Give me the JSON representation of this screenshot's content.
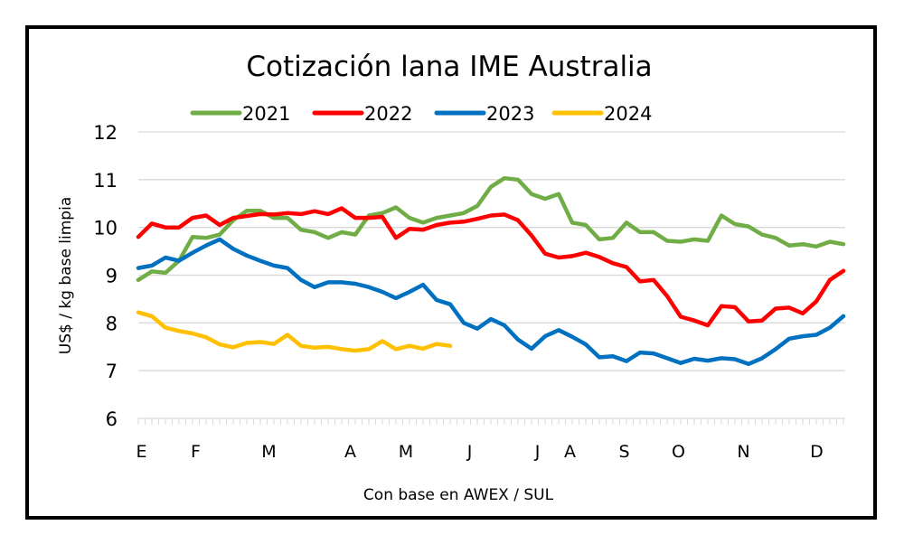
{
  "chart_data": {
    "type": "line",
    "title": "Cotización lana IME Australia",
    "ylabel": "US$ / kg base limpia",
    "xlabel": "Con base en AWEX / SUL",
    "ylim": [
      6,
      12
    ],
    "yticks": [
      6,
      7,
      8,
      9,
      10,
      11,
      12
    ],
    "xlim": [
      0,
      52
    ],
    "grid": "horizontal",
    "legend": "top",
    "x_unit": "week of year",
    "month_labels": [
      {
        "label": "E",
        "week": 0.1
      },
      {
        "label": "F",
        "week": 4.1
      },
      {
        "label": "M",
        "week": 9.5
      },
      {
        "label": "A",
        "week": 15.5
      },
      {
        "label": "M",
        "week": 19.6
      },
      {
        "label": "J",
        "week": 24.3
      },
      {
        "label": "J",
        "week": 29.3
      },
      {
        "label": "A",
        "week": 31.7
      },
      {
        "label": "S",
        "week": 35.7
      },
      {
        "label": "O",
        "week": 39.7
      },
      {
        "label": "N",
        "week": 44.5
      },
      {
        "label": "D",
        "week": 49.9
      }
    ],
    "series": [
      {
        "name": "2021",
        "color": "#70ad47",
        "values": [
          8.9,
          9.08,
          9.05,
          9.3,
          9.8,
          9.78,
          9.85,
          10.15,
          10.35,
          10.35,
          10.2,
          10.2,
          9.95,
          9.9,
          9.78,
          9.9,
          9.85,
          10.25,
          10.3,
          10.42,
          10.2,
          10.1,
          10.2,
          10.25,
          10.3,
          10.45,
          10.85,
          11.03,
          11.0,
          10.7,
          10.6,
          10.7,
          10.1,
          10.05,
          9.75,
          9.78,
          10.1,
          9.9,
          9.9,
          9.72,
          9.7,
          9.75,
          9.72,
          10.25,
          10.07,
          10.02,
          9.85,
          9.78,
          9.62,
          9.65,
          9.6,
          9.7,
          9.65
        ]
      },
      {
        "name": "2022",
        "color": "#ff0000",
        "values": [
          9.8,
          10.08,
          10.0,
          10.0,
          10.2,
          10.25,
          10.05,
          10.2,
          10.24,
          10.28,
          10.27,
          10.3,
          10.28,
          10.34,
          10.28,
          10.4,
          10.2,
          10.2,
          10.22,
          9.78,
          9.97,
          9.95,
          10.05,
          10.1,
          10.12,
          10.18,
          10.25,
          10.27,
          10.15,
          9.83,
          9.45,
          9.37,
          9.4,
          9.47,
          9.38,
          9.25,
          9.17,
          8.87,
          8.9,
          8.56,
          8.13,
          8.05,
          7.95,
          8.35,
          8.33,
          8.03,
          8.05,
          8.3,
          8.32,
          8.2,
          8.45,
          8.9,
          9.09
        ]
      },
      {
        "name": "2023",
        "color": "#0070c0",
        "values": [
          9.15,
          9.2,
          9.37,
          9.3,
          9.47,
          9.62,
          9.75,
          9.55,
          9.41,
          9.3,
          9.2,
          9.15,
          8.9,
          8.75,
          8.85,
          8.85,
          8.82,
          8.75,
          8.65,
          8.52,
          8.65,
          8.8,
          8.48,
          8.39,
          8.0,
          7.88,
          8.08,
          7.95,
          7.65,
          7.46,
          7.72,
          7.85,
          7.71,
          7.55,
          7.28,
          7.3,
          7.2,
          7.38,
          7.36,
          7.26,
          7.16,
          7.25,
          7.21,
          7.26,
          7.24,
          7.14,
          7.26,
          7.45,
          7.67,
          7.72,
          7.75,
          7.9,
          8.14
        ]
      },
      {
        "name": "2024",
        "color": "#ffc000",
        "values": [
          8.22,
          8.14,
          7.9,
          7.83,
          7.78,
          7.7,
          7.55,
          7.49,
          7.58,
          7.6,
          7.56,
          7.75,
          7.52,
          7.48,
          7.5,
          7.45,
          7.42,
          7.45,
          7.62,
          7.45,
          7.52,
          7.46,
          7.56,
          7.52
        ]
      }
    ]
  }
}
